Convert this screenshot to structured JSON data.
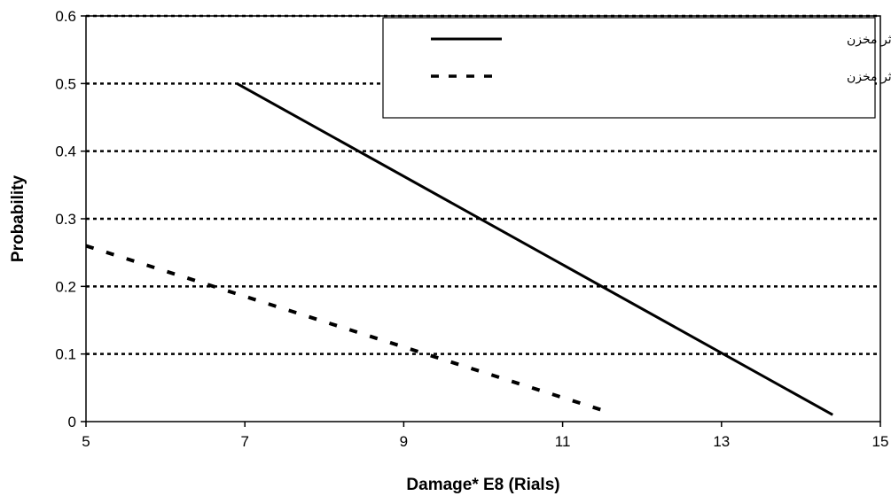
{
  "chart_data": {
    "type": "line",
    "title": "",
    "xlabel": "Damage* E8 (Rials)",
    "ylabel": "Probability",
    "xlim": [
      5,
      15
    ],
    "ylim": [
      0,
      0.6
    ],
    "x_ticks": [
      5,
      7,
      9,
      11,
      13,
      15
    ],
    "y_ticks": [
      0,
      0.1,
      0.2,
      0.3,
      0.4,
      0.5,
      0.6
    ],
    "x_tick_labels": [
      "5",
      "7",
      "9",
      "11",
      "13",
      "15"
    ],
    "y_tick_labels": [
      "0",
      "0.1",
      "0.2",
      "0.3",
      "0.4",
      "0.5",
      "0.6"
    ],
    "grid": "horizontal dotted",
    "legend_position": "top-right",
    "series": [
      {
        "name": "بدون درنظر گرفتن سیستم هشدار سیل و اثر مخزن",
        "style": "solid",
        "color": "#000000",
        "points": [
          [
            6.9,
            0.5
          ],
          [
            14.4,
            0.01
          ]
        ]
      },
      {
        "name": "با درنظر گرفتن سیستم هشدار سیل و اثر مخزن",
        "style": "dashed",
        "color": "#000000",
        "points": [
          [
            5.0,
            0.26
          ],
          [
            11.55,
            0.015
          ]
        ]
      }
    ]
  }
}
